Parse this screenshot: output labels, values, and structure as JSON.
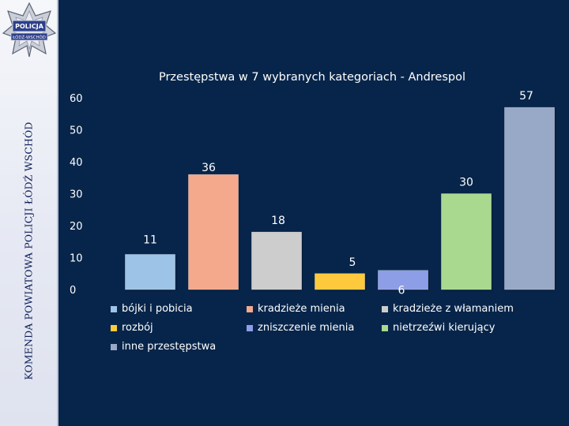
{
  "sidebar": {
    "vertical_text": "KOMENDA POWIATOWA POLICJI ŁÓDŹ WSCHÓD",
    "badge_top_text": "POLICJA",
    "badge_bottom_text": "ŁÓDŹ-WSCHÓD"
  },
  "chart_data": {
    "type": "bar",
    "title": "Przestępstwa w 7 wybranych kategoriach - Andrespol",
    "categories": [
      "bójki i pobicia",
      "kradzieże mienia",
      "kradzieże z włamaniem",
      "rozbój",
      "zniszczenie mienia",
      "nietrzeźwi kierujący",
      "inne przestępstwa"
    ],
    "values": [
      11,
      36,
      18,
      5,
      6,
      30,
      57
    ],
    "data_labels": [
      "11",
      "36",
      "18",
      "5",
      "6",
      "30",
      "57"
    ],
    "colors": [
      "#9dc3e6",
      "#f4a98c",
      "#cdcdcd",
      "#ffc93c",
      "#8d9ee6",
      "#a9d98e",
      "#98a8c7"
    ],
    "ylim": [
      0,
      60
    ],
    "yticks": [
      0,
      10,
      20,
      30,
      40,
      50,
      60
    ],
    "xlabel": "",
    "ylabel": "",
    "grid": false,
    "legend": "bottom"
  }
}
